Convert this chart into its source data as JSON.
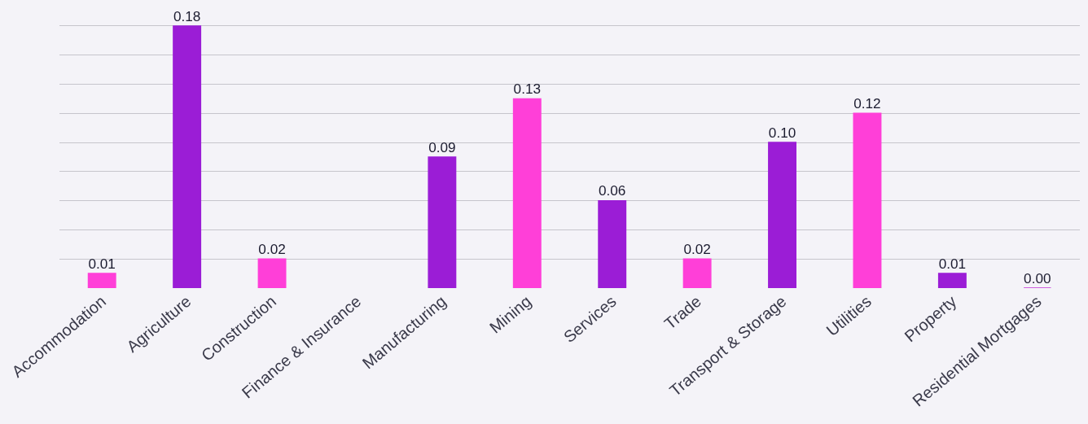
{
  "chart_data": {
    "type": "bar",
    "categories": [
      "Accommodation",
      "Agriculture",
      "Construction",
      "Finance & Insurance",
      "Manufacturing",
      "Mining",
      "Services",
      "Trade",
      "Transport & Storage",
      "Utilities",
      "Property",
      "Residential Mortgages"
    ],
    "values": [
      0.01,
      0.18,
      0.02,
      null,
      0.09,
      0.13,
      0.06,
      0.02,
      0.1,
      0.12,
      0.01,
      0.0
    ],
    "value_labels": [
      "0.01",
      "0.18",
      "0.02",
      null,
      "0.09",
      "0.13",
      "0.06",
      "0.02",
      "0.10",
      "0.12",
      "0.01",
      "0.00"
    ],
    "colors": [
      "#ff3fd8",
      "#9b1dd6",
      "#ff3fd8",
      "#9b1dd6",
      "#9b1dd6",
      "#ff3fd8",
      "#9b1dd6",
      "#ff3fd8",
      "#9b1dd6",
      "#ff3fd8",
      "#9b1dd6",
      "#c42fd8"
    ],
    "grid": "y",
    "tick_labels": "x"
  }
}
